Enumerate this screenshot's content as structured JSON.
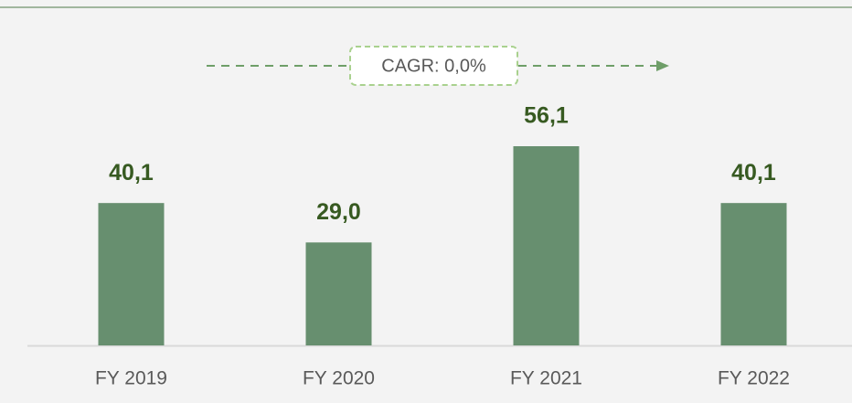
{
  "chart_data": {
    "type": "bar",
    "annotation": "CAGR: 0,0%",
    "categories": [
      "FY 2019",
      "FY 2020",
      "FY 2021",
      "FY 2022"
    ],
    "values": [
      40.1,
      29.0,
      56.1,
      40.1
    ],
    "value_labels": [
      "40,1",
      "29,0",
      "56,1",
      "40,1"
    ],
    "color": "#678f6f"
  }
}
